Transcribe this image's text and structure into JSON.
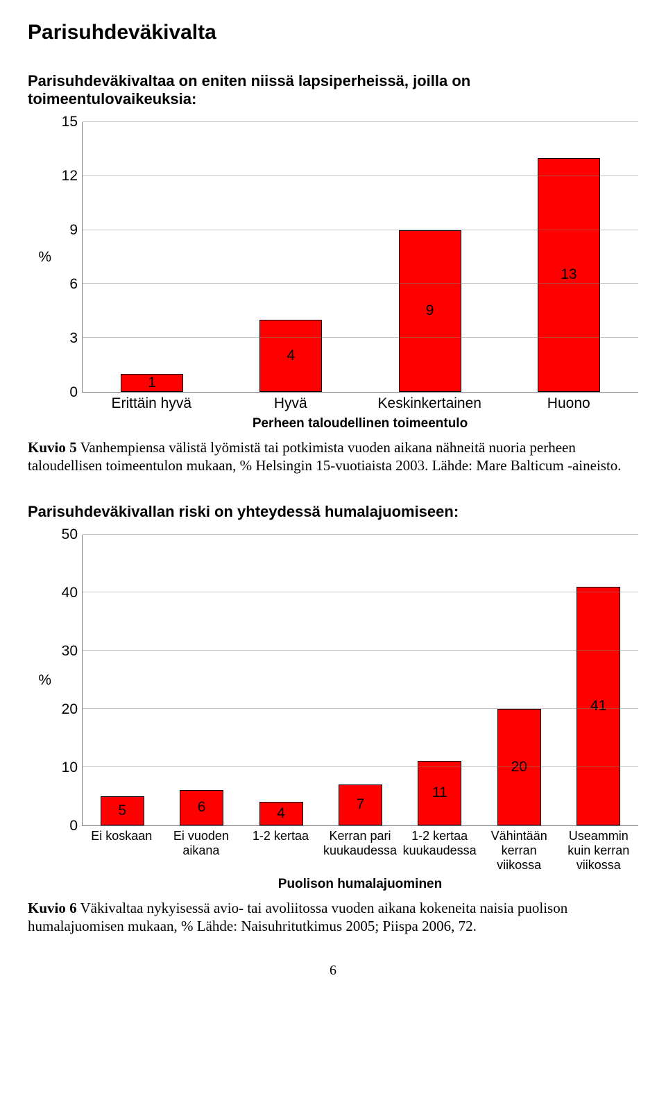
{
  "pageTitle": "Parisuhdeväkivalta",
  "chart1": {
    "heading": "Parisuhdeväkivaltaa on eniten niissä lapsiperheissä, joilla on toimeentulovaikeuksia:",
    "type": "bar",
    "yLabel": "%",
    "ylim": [
      0,
      15
    ],
    "yticks": [
      0,
      3,
      6,
      9,
      12,
      15
    ],
    "categories": [
      "Erittäin hyvä",
      "Hyvä",
      "Keskinkertainen",
      "Huono"
    ],
    "values": [
      1,
      4,
      9,
      13
    ],
    "barColor": "#ff0000",
    "barBorder": "#000000",
    "gridColor": "#808080",
    "barWidthPct": 45,
    "plotHeightPx": 390,
    "xAxisTitle": "Perheen taloudellinen toimeentulo",
    "captionBold": "Kuvio 5",
    "captionRest": "  Vanhempiensa välistä lyömistä tai potkimista vuoden aikana nähneitä nuoria perheen taloudellisen toimeentulon mukaan, % Helsingin 15-vuotiaista 2003. Lähde: Mare Balticum -aineisto."
  },
  "chart2": {
    "heading": "Parisuhdeväkivallan riski on yhteydessä  humalajuomiseen:",
    "type": "bar",
    "yLabel": "%",
    "ylim": [
      0,
      50
    ],
    "yticks": [
      0,
      10,
      20,
      30,
      40,
      50
    ],
    "categories": [
      "Ei koskaan",
      "Ei vuoden aikana",
      "1-2 kertaa",
      "Kerran pari kuukaudessa",
      "1-2 kertaa kuukaudessa",
      "Vähintään kerran viikossa",
      "Useammin kuin kerran viikossa"
    ],
    "values": [
      5,
      6,
      4,
      7,
      11,
      20,
      41
    ],
    "barColor": "#ff0000",
    "barBorder": "#000000",
    "gridColor": "#808080",
    "barWidthPct": 55,
    "plotHeightPx": 420,
    "xAxisTitle": "Puolison humalajuominen",
    "captionBold": "Kuvio 6",
    "captionRest": "  Väkivaltaa nykyisessä avio- tai avoliitossa vuoden aikana kokeneita naisia puolison humalajuomisen mukaan, % Lähde: Naisuhritutkimus 2005; Piispa 2006, 72."
  },
  "pageNumber": "6"
}
